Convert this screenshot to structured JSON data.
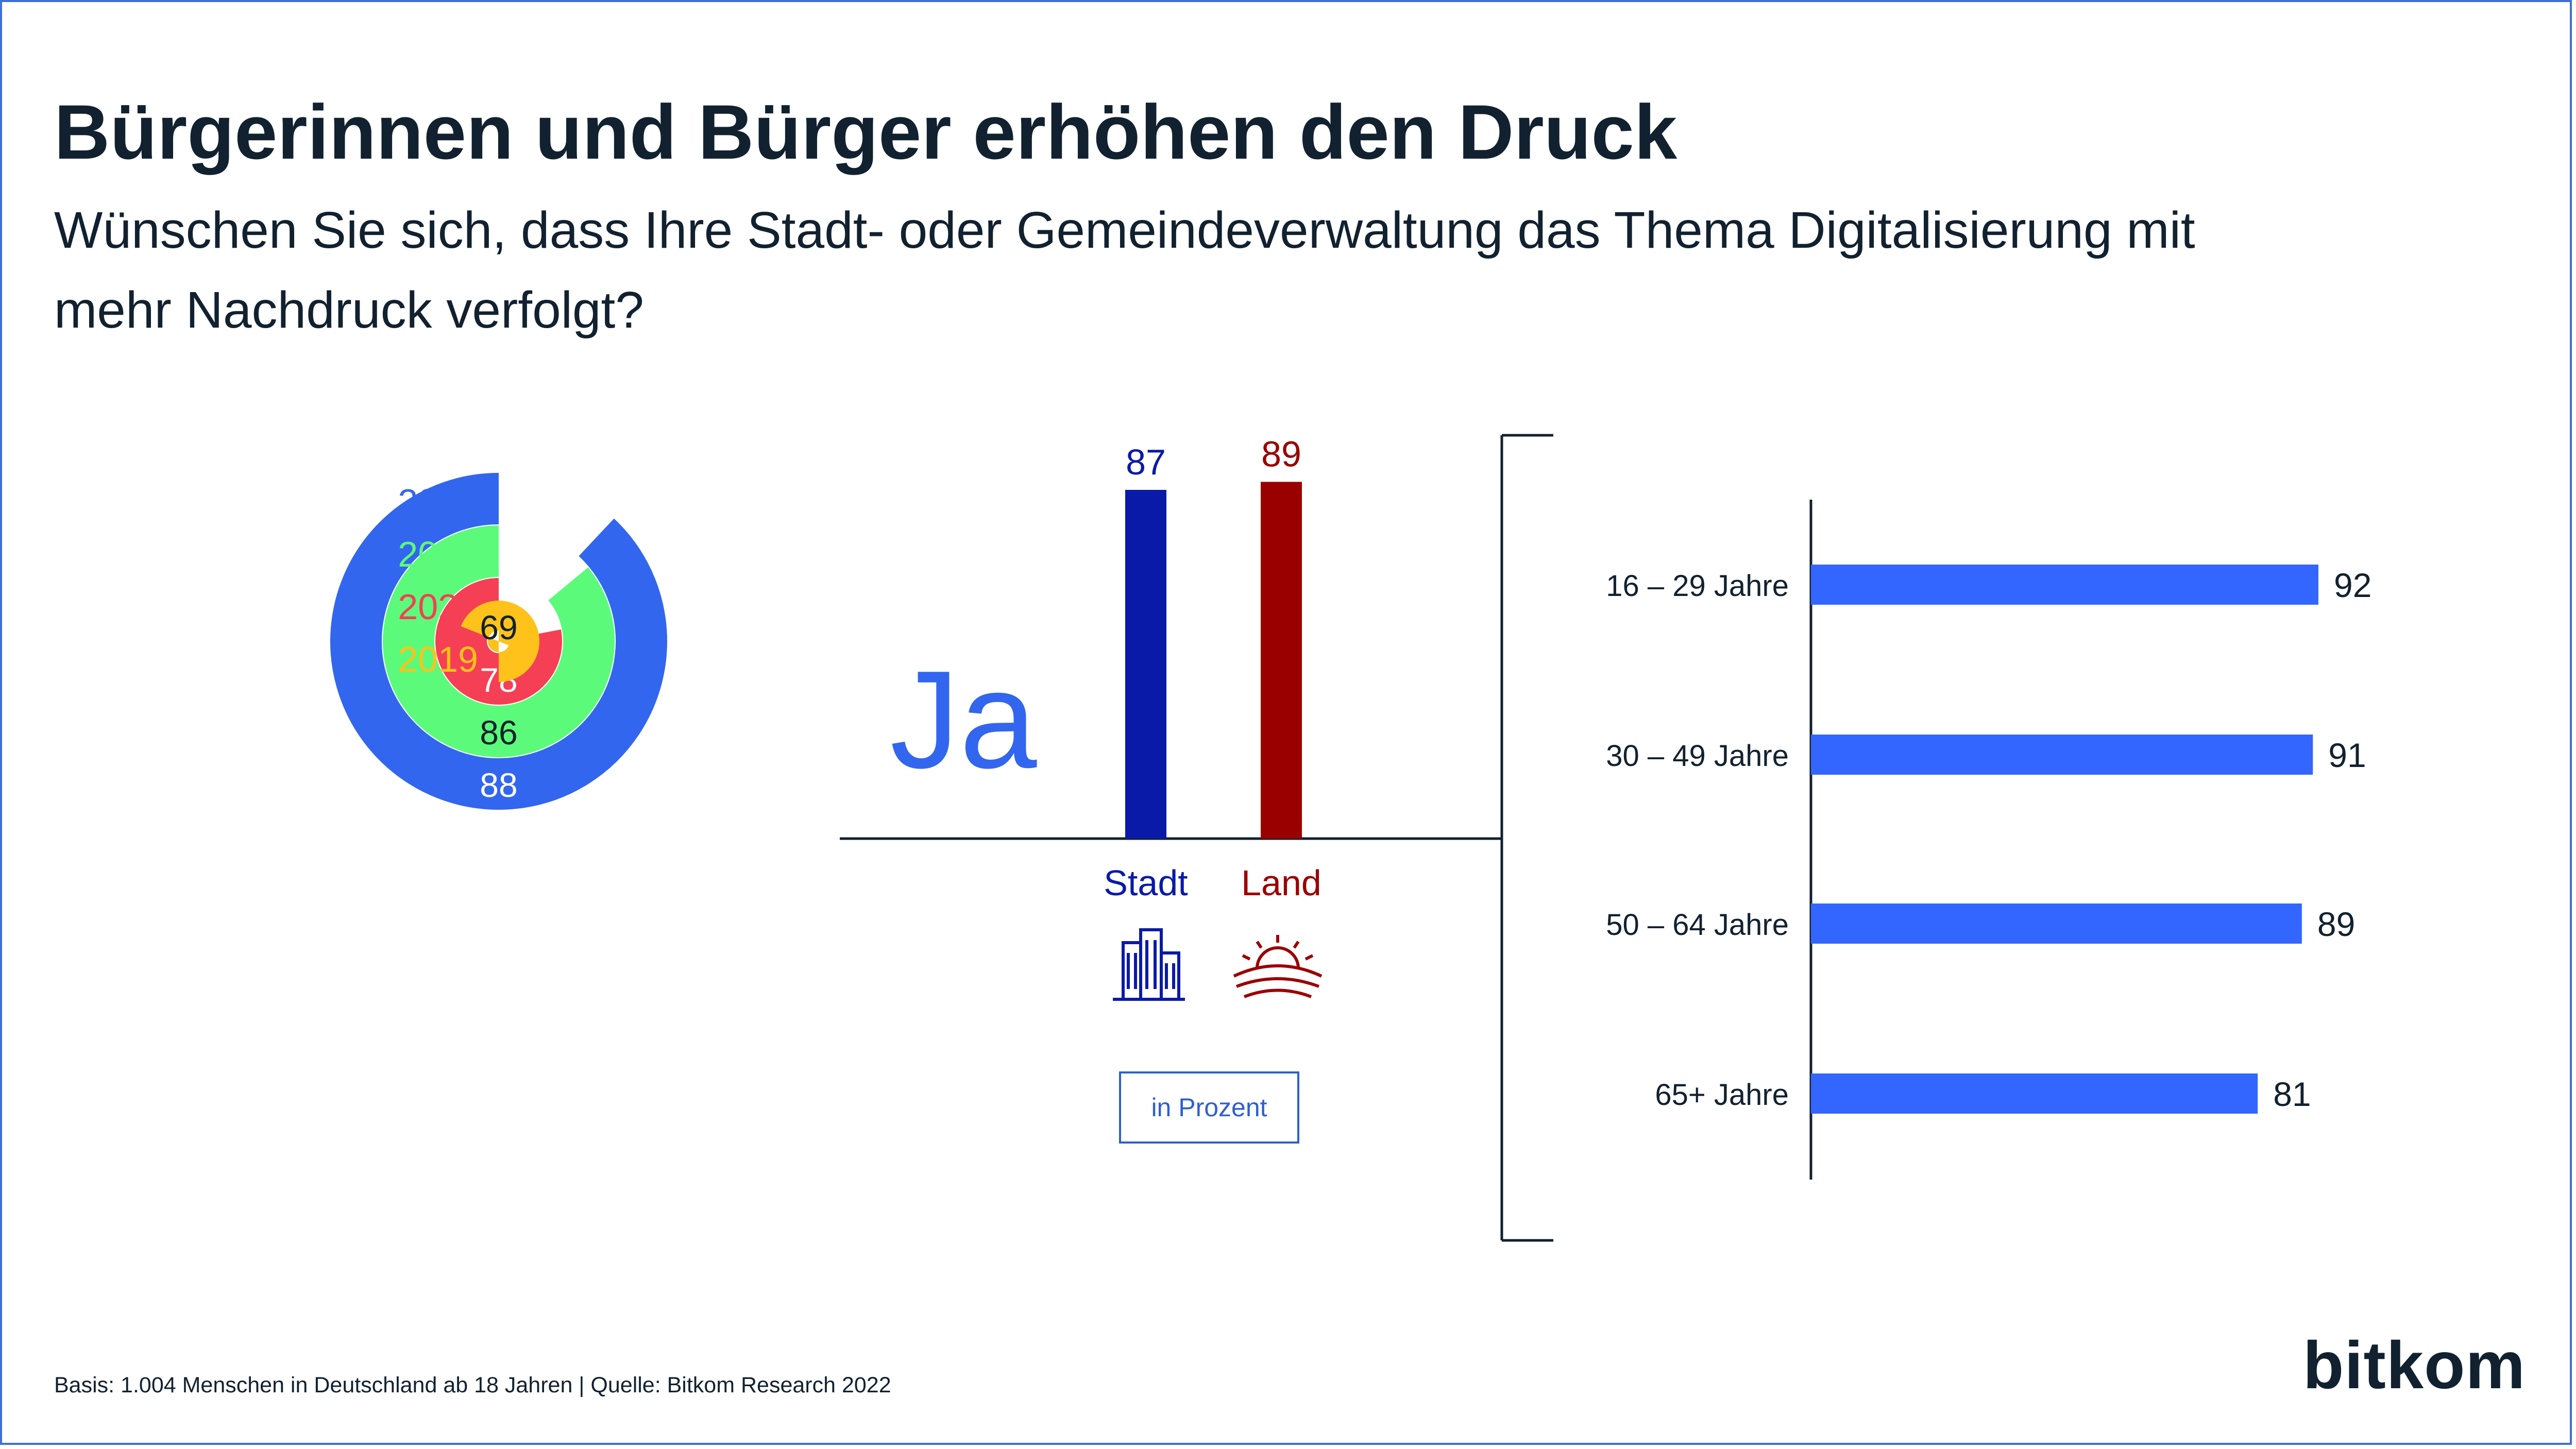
{
  "header": {
    "title": "Bürgerinnen und Bürger erhöhen den Druck",
    "subtitle": "Wünschen Sie sich, dass Ihre Stadt- oder Gemeindeverwaltung das Thema Digitalisierung mit mehr Nachdruck verfolgt?"
  },
  "answer_label": "Ja",
  "unit_label": "in Prozent",
  "footnote": "Basis: 1.004 Menschen in Deutschland ab 18 Jahren | Quelle: Bitkom Research 2022",
  "logo_text": "bitkom",
  "icons": {
    "stadt": "city-buildings-icon",
    "land": "countryside-sunset-icon"
  },
  "chart_data": [
    {
      "type": "radial-bar",
      "max": 100,
      "series": [
        {
          "name": "2022",
          "value": 88,
          "color": "#3366ee"
        },
        {
          "name": "2021",
          "value": 86,
          "color": "#5cfa7a"
        },
        {
          "name": "2020",
          "value": 78,
          "color": "#f53f55"
        },
        {
          "name": "2019",
          "value": 69,
          "color": "#ffc21a"
        }
      ]
    },
    {
      "type": "bar",
      "categories": [
        "Stadt",
        "Land"
      ],
      "values": [
        87,
        89
      ],
      "colors": [
        "#0a1aa8",
        "#9b0000"
      ]
    },
    {
      "type": "bar",
      "orientation": "horizontal",
      "categories": [
        "16 – 29 Jahre",
        "30 – 49 Jahre",
        "50 – 64 Jahre",
        "65+ Jahre"
      ],
      "values": [
        92,
        91,
        89,
        81
      ],
      "color": "#3366ff"
    }
  ]
}
